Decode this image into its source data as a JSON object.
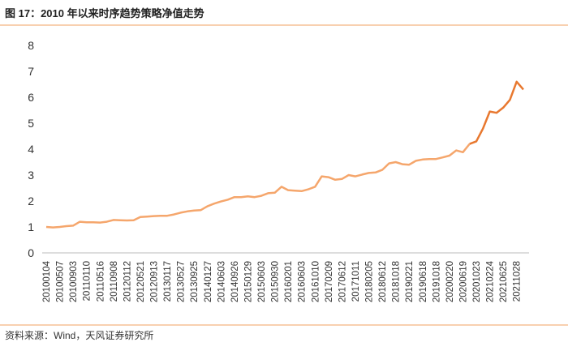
{
  "chart_data": {
    "type": "line",
    "title": "图 17：2010 年以来时序趋势策略净值走势",
    "source": "资料来源：Wind，天风证券研究所",
    "categories": [
      "20100104",
      null,
      "20100507",
      null,
      "20100903",
      null,
      "20110110",
      null,
      "20110516",
      null,
      "20110908",
      null,
      "20120112",
      null,
      "20120521",
      null,
      "20120913",
      null,
      "20130117",
      null,
      "20130527",
      null,
      "20130925",
      null,
      "20140127",
      null,
      "20140603",
      null,
      "20140926",
      null,
      "20150129",
      null,
      "20150603",
      null,
      "20150930",
      null,
      "20160201",
      null,
      "20160603",
      null,
      "20161010",
      null,
      "20170209",
      null,
      "20170612",
      null,
      "20171011",
      null,
      "20180205",
      null,
      "20180612",
      null,
      "20181018",
      null,
      "20190221",
      null,
      "20190618",
      null,
      "20191018",
      null,
      "20200220",
      null,
      "20200619",
      null,
      "20201023",
      null,
      "20210224",
      null,
      "20210625",
      null,
      "20211028",
      null
    ],
    "series": [
      {
        "color": "#f5a66c",
        "values": [
          1.0,
          0.98,
          1.0,
          1.03,
          1.05,
          1.2,
          1.18,
          1.18,
          1.17,
          1.2,
          1.27,
          1.26,
          1.25,
          1.26,
          1.38,
          1.4,
          1.42,
          1.43,
          1.43,
          1.48,
          1.55,
          1.6,
          1.63,
          1.65,
          1.8,
          1.9,
          1.98,
          2.05,
          2.15,
          2.15,
          2.18,
          2.15,
          2.2,
          2.3,
          2.32,
          2.55,
          2.42,
          2.4,
          2.38,
          2.45,
          2.55,
          2.95,
          2.92,
          2.82,
          2.85,
          3.0,
          2.95,
          3.02,
          3.08,
          3.1,
          3.2,
          3.45,
          3.5,
          3.42,
          3.4,
          3.55,
          3.6,
          3.62,
          3.62,
          3.68,
          3.75,
          3.95,
          3.88,
          4.2,
          null,
          null,
          null,
          null,
          null,
          null,
          null,
          null
        ]
      },
      {
        "color": "#e8782f",
        "values": [
          null,
          null,
          null,
          null,
          null,
          null,
          null,
          null,
          null,
          null,
          null,
          null,
          null,
          null,
          null,
          null,
          null,
          null,
          null,
          null,
          null,
          null,
          null,
          null,
          null,
          null,
          null,
          null,
          null,
          null,
          null,
          null,
          null,
          null,
          null,
          null,
          null,
          null,
          null,
          null,
          null,
          null,
          null,
          null,
          null,
          null,
          null,
          null,
          null,
          null,
          null,
          null,
          null,
          null,
          null,
          null,
          null,
          null,
          null,
          null,
          null,
          null,
          null,
          4.2,
          4.3,
          4.8,
          5.45,
          5.4,
          5.6,
          5.9,
          6.6,
          6.3
        ]
      }
    ],
    "ylim": [
      0,
      8
    ],
    "yticks": [
      0,
      1,
      2,
      3,
      4,
      5,
      6,
      7,
      8
    ],
    "grid": false
  }
}
